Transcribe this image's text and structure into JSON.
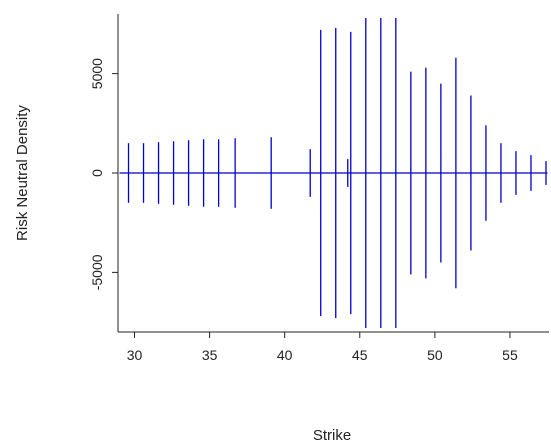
{
  "chart_data": {
    "type": "line",
    "title": "",
    "xlabel": "Strike",
    "ylabel": "Risk Neutral Density",
    "xlim": [
      28.9,
      57.6
    ],
    "ylim": [
      -8000,
      8000
    ],
    "x_ticks": [
      30,
      35,
      40,
      45,
      50,
      55
    ],
    "y_ticks": [
      -5000,
      0,
      5000
    ],
    "grid": false,
    "line_color": "#0000cc",
    "series": [
      {
        "x": [
          29.0,
          57.5
        ],
        "values": [
          0,
          0
        ]
      }
    ],
    "spikes": [
      {
        "x": 29.6,
        "amp": 1500
      },
      {
        "x": 30.6,
        "amp": 1500
      },
      {
        "x": 31.6,
        "amp": 1550
      },
      {
        "x": 32.6,
        "amp": 1600
      },
      {
        "x": 33.6,
        "amp": 1650
      },
      {
        "x": 34.6,
        "amp": 1700
      },
      {
        "x": 35.6,
        "amp": 1700
      },
      {
        "x": 36.7,
        "amp": 1750
      },
      {
        "x": 39.1,
        "amp": 1800
      },
      {
        "x": 41.7,
        "amp": 1200
      },
      {
        "x": 42.4,
        "amp": 7200
      },
      {
        "x": 43.4,
        "amp": 7300
      },
      {
        "x": 44.2,
        "amp": 700
      },
      {
        "x": 44.4,
        "amp": 7100
      },
      {
        "x": 45.4,
        "amp": 7800
      },
      {
        "x": 46.4,
        "amp": 7800
      },
      {
        "x": 47.4,
        "amp": 7800
      },
      {
        "x": 48.4,
        "amp": 5100
      },
      {
        "x": 49.4,
        "amp": 5300
      },
      {
        "x": 50.4,
        "amp": 4500
      },
      {
        "x": 51.4,
        "amp": 5800
      },
      {
        "x": 52.4,
        "amp": 3900
      },
      {
        "x": 53.4,
        "amp": 2400
      },
      {
        "x": 54.4,
        "amp": 1500
      },
      {
        "x": 55.4,
        "amp": 1100
      },
      {
        "x": 56.4,
        "amp": 900
      },
      {
        "x": 57.4,
        "amp": 600
      }
    ]
  }
}
